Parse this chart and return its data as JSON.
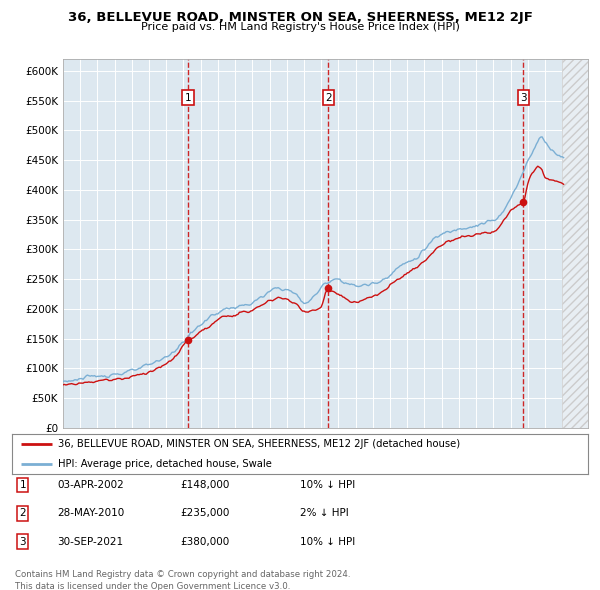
{
  "title": "36, BELLEVUE ROAD, MINSTER ON SEA, SHEERNESS, ME12 2JF",
  "subtitle": "Price paid vs. HM Land Registry's House Price Index (HPI)",
  "ylabel_ticks": [
    "£0",
    "£50K",
    "£100K",
    "£150K",
    "£200K",
    "£250K",
    "£300K",
    "£350K",
    "£400K",
    "£450K",
    "£500K",
    "£550K",
    "£600K"
  ],
  "ylim": [
    0,
    620000
  ],
  "ytick_values": [
    0,
    50000,
    100000,
    150000,
    200000,
    250000,
    300000,
    350000,
    400000,
    450000,
    500000,
    550000,
    600000
  ],
  "sales": [
    {
      "date": 2002.25,
      "price": 148000,
      "label": "1"
    },
    {
      "date": 2010.42,
      "price": 235000,
      "label": "2"
    },
    {
      "date": 2021.75,
      "price": 380000,
      "label": "3"
    }
  ],
  "hpi_color": "#7bafd4",
  "price_color": "#cc1111",
  "plot_bg": "#dde8f0",
  "grid_color": "#ffffff",
  "hatch_bg": "#e8eef3",
  "legend_entries": [
    "36, BELLEVUE ROAD, MINSTER ON SEA, SHEERNESS, ME12 2JF (detached house)",
    "HPI: Average price, detached house, Swale"
  ],
  "table_rows": [
    {
      "num": "1",
      "date": "03-APR-2002",
      "price": "£148,000",
      "hpi": "10% ↓ HPI"
    },
    {
      "num": "2",
      "date": "28-MAY-2010",
      "price": "£235,000",
      "hpi": "2% ↓ HPI"
    },
    {
      "num": "3",
      "date": "30-SEP-2021",
      "price": "£380,000",
      "hpi": "10% ↓ HPI"
    }
  ],
  "footnote": "Contains HM Land Registry data © Crown copyright and database right 2024.\nThis data is licensed under the Open Government Licence v3.0.",
  "xmin": 1995.0,
  "xmax": 2025.5,
  "hatch_xstart": 2024.0
}
